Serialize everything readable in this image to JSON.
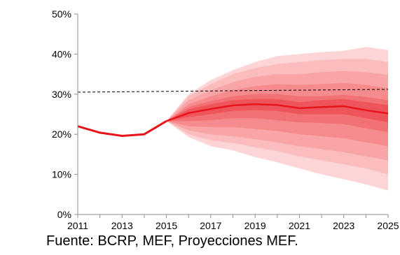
{
  "chart_data": {
    "type": "area",
    "title": "",
    "xlabel": "",
    "ylabel": "",
    "xlim": [
      2011,
      2025
    ],
    "ylim": [
      0,
      50
    ],
    "x_ticks": [
      "2011",
      "2013",
      "2015",
      "2017",
      "2019",
      "2021",
      "2023",
      "2025"
    ],
    "y_ticks": [
      "0%",
      "10%",
      "20%",
      "30%",
      "40%",
      "50%"
    ],
    "grid": false,
    "legend": "none",
    "x": [
      2011,
      2012,
      2013,
      2014,
      2015,
      2016,
      2017,
      2018,
      2019,
      2020,
      2021,
      2022,
      2023,
      2024,
      2025
    ],
    "historical": [
      22.0,
      20.4,
      19.6,
      20.0,
      23.3,
      null,
      null,
      null,
      null,
      null,
      null,
      null,
      null,
      null,
      null
    ],
    "central_projection": [
      null,
      null,
      null,
      null,
      23.3,
      25.3,
      26.3,
      27.2,
      27.5,
      27.3,
      26.5,
      26.8,
      27.0,
      26.0,
      25.2
    ],
    "fan_bands": [
      {
        "lower": [
          null,
          null,
          null,
          null,
          23.3,
          19.3,
          17.0,
          16.0,
          14.3,
          13.0,
          11.5,
          10.0,
          8.8,
          7.5,
          6.0
        ],
        "upper": [
          null,
          null,
          null,
          null,
          23.3,
          30.0,
          33.5,
          36.0,
          38.0,
          39.5,
          40.0,
          40.5,
          40.8,
          41.8,
          41.0
        ]
      },
      {
        "lower": [
          null,
          null,
          null,
          null,
          23.3,
          20.0,
          18.5,
          17.8,
          16.8,
          15.8,
          14.5,
          13.5,
          12.5,
          11.5,
          10.0
        ],
        "upper": [
          null,
          null,
          null,
          null,
          23.3,
          29.5,
          32.5,
          35.0,
          36.5,
          37.5,
          38.0,
          38.5,
          38.8,
          38.8,
          38.0
        ]
      },
      {
        "lower": [
          null,
          null,
          null,
          null,
          23.3,
          21.0,
          20.0,
          19.5,
          18.8,
          18.0,
          17.0,
          16.3,
          15.5,
          14.5,
          13.5
        ],
        "upper": [
          null,
          null,
          null,
          null,
          23.3,
          28.5,
          31.0,
          33.0,
          34.3,
          35.0,
          35.0,
          35.5,
          35.8,
          35.5,
          34.8
        ]
      },
      {
        "lower": [
          null,
          null,
          null,
          null,
          23.3,
          22.0,
          21.8,
          21.8,
          21.3,
          20.8,
          20.0,
          19.5,
          19.0,
          18.0,
          17.0
        ],
        "upper": [
          null,
          null,
          null,
          null,
          23.3,
          27.5,
          29.5,
          31.0,
          32.0,
          32.5,
          32.3,
          32.5,
          32.8,
          32.3,
          31.5
        ]
      },
      {
        "lower": [
          null,
          null,
          null,
          null,
          23.3,
          23.3,
          23.5,
          24.0,
          24.0,
          23.5,
          23.0,
          22.8,
          22.5,
          21.5,
          20.5
        ],
        "upper": [
          null,
          null,
          null,
          null,
          23.3,
          26.8,
          28.3,
          29.5,
          30.0,
          30.0,
          29.5,
          29.5,
          29.8,
          29.3,
          28.5
        ]
      },
      {
        "lower": [
          null,
          null,
          null,
          null,
          23.3,
          24.3,
          25.0,
          25.8,
          26.0,
          25.8,
          25.0,
          25.0,
          25.0,
          24.0,
          23.0
        ],
        "upper": [
          null,
          null,
          null,
          null,
          23.3,
          26.2,
          27.5,
          28.5,
          28.8,
          28.8,
          28.0,
          28.5,
          28.8,
          28.0,
          27.3
        ]
      }
    ],
    "reference_line": {
      "x": [
        2011,
        2025
      ],
      "y": [
        30.5,
        31.2
      ],
      "style": "dashed"
    },
    "colors": {
      "line": "#e8141c",
      "bands": [
        "#fdd5d6",
        "#fbbcbd",
        "#f9a4a6",
        "#f68b8e",
        "#f27174",
        "#ee555a"
      ],
      "reference": "#000000",
      "axis": "#8c8c8c"
    }
  },
  "source_note": "Fuente: BCRP, MEF, Proyecciones MEF."
}
